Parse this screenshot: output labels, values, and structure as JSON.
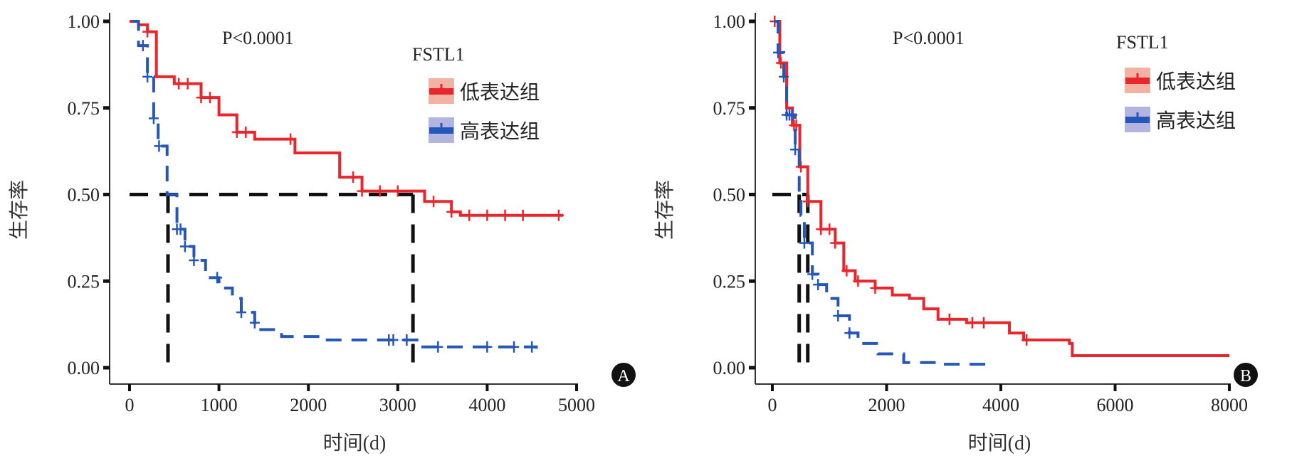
{
  "chart_data": [
    {
      "type": "line",
      "panel_label": "A",
      "annotation": "P<0.0001",
      "ylabel": "生存率",
      "xlabel": "时间(d)",
      "xlim": [
        0,
        5000
      ],
      "ylim": [
        0,
        1
      ],
      "xticks": [
        "0",
        "1000",
        "2000",
        "3000",
        "4000",
        "5000"
      ],
      "yticks": [
        "0.00",
        "0.25",
        "0.50",
        "0.75",
        "1.00"
      ],
      "legend": {
        "title": "FSTL1",
        "position": "top-right"
      },
      "median_lines": {
        "y": 0.5,
        "x": [
          430,
          3170
        ]
      },
      "series": [
        {
          "name": "低表达组",
          "color": "#e8262b",
          "dashed": false,
          "x": [
            0,
            100,
            200,
            300,
            500,
            800,
            1000,
            1200,
            1400,
            1700,
            1850,
            2100,
            2350,
            2600,
            3150,
            3300,
            3600,
            3700,
            4850
          ],
          "y": [
            1.0,
            0.99,
            0.97,
            0.84,
            0.82,
            0.78,
            0.73,
            0.68,
            0.66,
            0.66,
            0.62,
            0.62,
            0.55,
            0.51,
            0.51,
            0.48,
            0.45,
            0.44,
            0.44
          ],
          "censor_x": [
            200,
            550,
            650,
            800,
            900,
            1200,
            1300,
            1800,
            2500,
            2600,
            2800,
            3000,
            3400,
            3600,
            3800,
            4000,
            4200,
            4400,
            4800
          ]
        },
        {
          "name": "高表达组",
          "color": "#2457b8",
          "dashed": true,
          "x": [
            30,
            100,
            200,
            270,
            320,
            420,
            530,
            620,
            720,
            850,
            1000,
            1150,
            1250,
            1400,
            1450,
            1700,
            2150,
            3150,
            3250,
            4550
          ],
          "y": [
            1.0,
            0.93,
            0.84,
            0.72,
            0.64,
            0.5,
            0.4,
            0.35,
            0.31,
            0.26,
            0.23,
            0.2,
            0.16,
            0.13,
            0.11,
            0.09,
            0.08,
            0.08,
            0.06,
            0.055
          ],
          "censor_x": [
            150,
            200,
            270,
            330,
            530,
            570,
            620,
            720,
            980,
            1250,
            1400,
            2900,
            2950,
            3100,
            3450,
            4000,
            4300,
            4500
          ]
        }
      ]
    },
    {
      "type": "line",
      "panel_label": "B",
      "annotation": "P<0.0001",
      "ylabel": "生存率",
      "xlabel": "时间(d)",
      "xlim": [
        0,
        8000
      ],
      "ylim": [
        0,
        1
      ],
      "xticks": [
        "0",
        "2000",
        "4000",
        "6000",
        "8000"
      ],
      "yticks": [
        "0.00",
        "0.25",
        "0.50",
        "0.75",
        "1.00"
      ],
      "legend": {
        "title": "FSTL1",
        "position": "top-right"
      },
      "median_lines": {
        "y": 0.5,
        "x": [
          470,
          620
        ]
      },
      "series": [
        {
          "name": "低表达组",
          "color": "#e8262b",
          "dashed": false,
          "x": [
            40,
            130,
            250,
            350,
            480,
            620,
            850,
            1100,
            1250,
            1450,
            1800,
            2100,
            2400,
            2650,
            2900,
            3400,
            4150,
            4400,
            5200,
            5250,
            8000
          ],
          "y": [
            1.0,
            0.88,
            0.75,
            0.7,
            0.58,
            0.48,
            0.4,
            0.36,
            0.28,
            0.25,
            0.23,
            0.21,
            0.2,
            0.17,
            0.14,
            0.13,
            0.1,
            0.08,
            0.07,
            0.035,
            0.035
          ],
          "censor_x": [
            40,
            150,
            380,
            420,
            500,
            620,
            850,
            1000,
            1100,
            1300,
            1500,
            1800,
            3100,
            3500,
            3700,
            4450
          ]
        },
        {
          "name": "高表达组",
          "color": "#2457b8",
          "dashed": true,
          "x": [
            40,
            100,
            200,
            250,
            400,
            470,
            500,
            560,
            700,
            800,
            950,
            1150,
            1350,
            1500,
            1850,
            2300,
            2900,
            3800
          ],
          "y": [
            1.0,
            0.91,
            0.84,
            0.73,
            0.63,
            0.5,
            0.44,
            0.36,
            0.27,
            0.24,
            0.2,
            0.15,
            0.1,
            0.07,
            0.04,
            0.015,
            0.01,
            0.01
          ],
          "censor_x": [
            100,
            200,
            250,
            300,
            350,
            400,
            560,
            700,
            800,
            1150,
            1350
          ]
        }
      ]
    }
  ]
}
